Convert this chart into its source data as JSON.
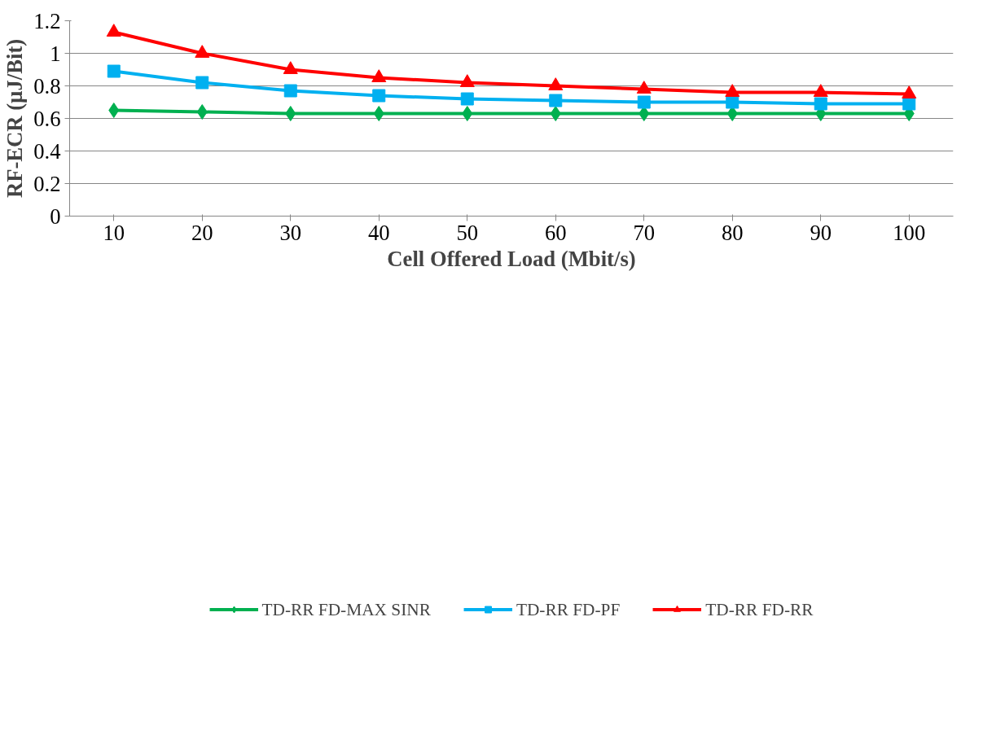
{
  "chart_data": {
    "type": "line",
    "xlabel": "Cell Offered Load (Mbit/s)",
    "ylabel": "RF-ECR (µJ/Bit)",
    "categories": [
      "10",
      "20",
      "30",
      "40",
      "50",
      "60",
      "70",
      "80",
      "90",
      "100"
    ],
    "ylim": [
      0,
      1.2
    ],
    "yticks": [
      0,
      0.2,
      0.4,
      0.6,
      0.8,
      1,
      1.2
    ],
    "grid": "y",
    "legend": "bottom",
    "series": [
      {
        "name": "TD-RR FD-MAX SINR",
        "color": "#00b050",
        "marker": "diamond",
        "values": [
          0.65,
          0.64,
          0.63,
          0.63,
          0.63,
          0.63,
          0.63,
          0.63,
          0.63,
          0.63
        ]
      },
      {
        "name": "TD-RR FD-PF",
        "color": "#00b0f0",
        "marker": "square",
        "values": [
          0.89,
          0.82,
          0.77,
          0.74,
          0.72,
          0.71,
          0.7,
          0.7,
          0.69,
          0.69
        ]
      },
      {
        "name": "TD-RR FD-RR",
        "color": "#ff0000",
        "marker": "triangle",
        "values": [
          1.13,
          1.0,
          0.9,
          0.85,
          0.82,
          0.8,
          0.78,
          0.76,
          0.76,
          0.75
        ]
      }
    ]
  }
}
